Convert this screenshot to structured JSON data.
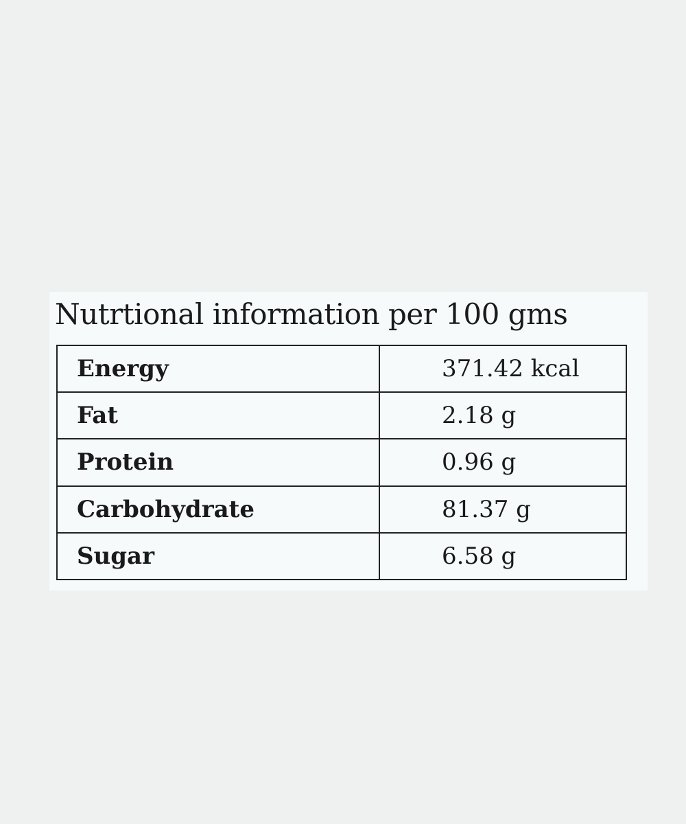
{
  "title": "Nutrtional information per 100 gms",
  "table": {
    "rows": [
      [
        "Energy",
        "371.42 kcal"
      ],
      [
        "Fat",
        "2.18 g"
      ],
      [
        "Protein",
        "0.96 g"
      ],
      [
        "Carbohydrate",
        "81.37 g"
      ],
      [
        "Sugar",
        "6.58 g"
      ]
    ]
  }
}
